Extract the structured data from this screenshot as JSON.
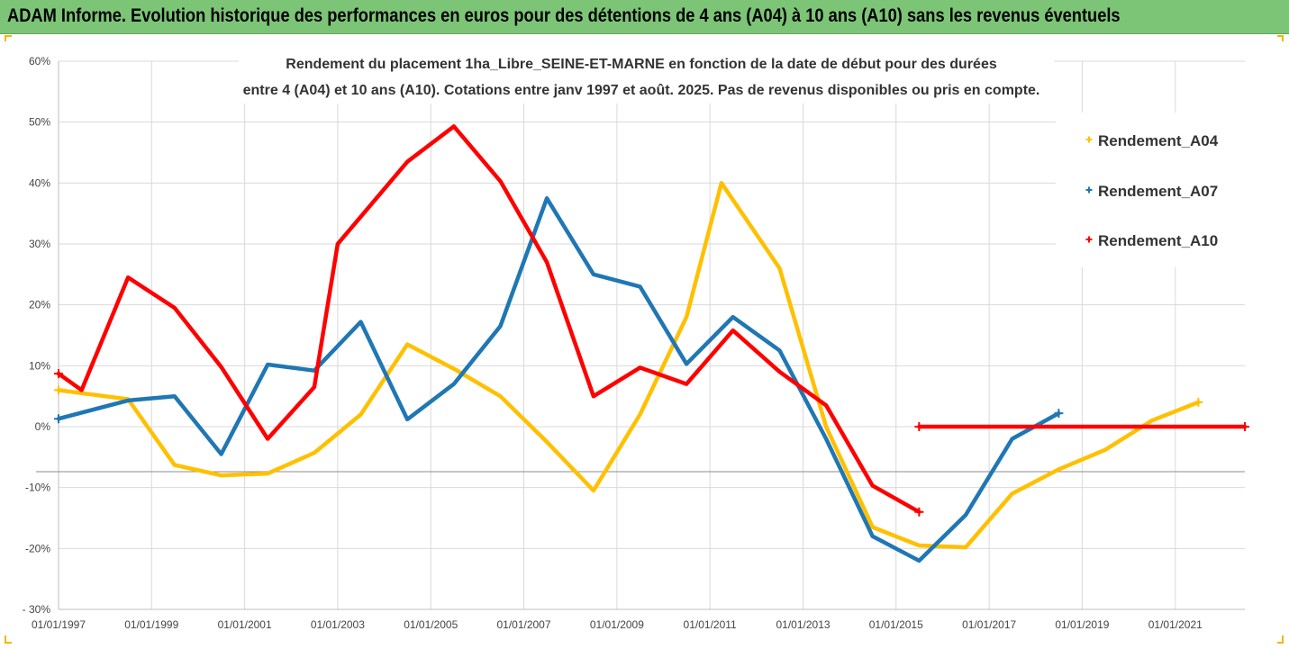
{
  "header": {
    "title": "ADAM Informe. Evolution historique des performances en euros pour des détentions de 4 ans (A04) à 10 ans (A10) sans les revenus éventuels"
  },
  "colors": {
    "banner": "#7cc576",
    "Rendement_A04": "#ffc000",
    "Rendement_A07": "#1f77b4",
    "Rendement_A10": "#ff0000"
  },
  "chart_data": {
    "type": "line",
    "title_lines": [
      "Rendement du placement 1ha_Libre_SEINE-ET-MARNE  en fonction de la date de début pour des durées",
      "entre 4 (A04) et 10 ans (A10). Cotations entre janv 1997 et août. 2025. Pas de revenus disponibles ou pris en compte."
    ],
    "xlabel": "",
    "ylabel": "",
    "x_axis_type": "date",
    "xlim": [
      "1997-01-01",
      "2022-07-01"
    ],
    "ylim": [
      -30,
      60
    ],
    "y_unit": "%",
    "y_ticks": [
      -30,
      -20,
      -10,
      0,
      10,
      20,
      30,
      40,
      50,
      60
    ],
    "y_tick_labels": [
      "- 30%",
      "-20%",
      "-10%",
      "0%",
      "10%",
      "20%",
      "30%",
      "40%",
      "50%",
      "60%"
    ],
    "x_ticks": [
      "1997-01-01",
      "1999-01-01",
      "2001-01-01",
      "2003-01-01",
      "2005-01-01",
      "2007-01-01",
      "2009-01-01",
      "2011-01-01",
      "2013-01-01",
      "2015-01-01",
      "2017-01-01",
      "2019-01-01",
      "2021-01-01"
    ],
    "x_tick_labels": [
      "01/01/1997",
      "01/01/1999",
      "01/01/2001",
      "01/01/2003",
      "01/01/2005",
      "01/01/2007",
      "01/01/2009",
      "01/01/2011",
      "01/01/2013",
      "01/01/2015",
      "01/01/2017",
      "01/01/2019",
      "01/01/2021"
    ],
    "grid": true,
    "legend_position": "right",
    "series": [
      {
        "name": "Rendement_A04",
        "points": [
          [
            "1997-01-01",
            6
          ],
          [
            "1997-07-01",
            5.5
          ],
          [
            "1998-07-01",
            4.5
          ],
          [
            "1999-07-01",
            -6.3
          ],
          [
            "2000-07-01",
            -8
          ],
          [
            "2001-07-01",
            -7.7
          ],
          [
            "2002-07-01",
            -4.3
          ],
          [
            "2003-07-01",
            2
          ],
          [
            "2004-07-01",
            13.5
          ],
          [
            "2005-07-01",
            9.5
          ],
          [
            "2006-07-01",
            5
          ],
          [
            "2007-07-01",
            -2.5
          ],
          [
            "2008-07-01",
            -10.5
          ],
          [
            "2009-07-01",
            2
          ],
          [
            "2010-07-01",
            18
          ],
          [
            "2011-04-01",
            40
          ],
          [
            "2012-07-01",
            26
          ],
          [
            "2013-07-01",
            0
          ],
          [
            "2014-07-01",
            -16.5
          ],
          [
            "2015-07-01",
            -19.5
          ],
          [
            "2016-07-01",
            -19.8
          ],
          [
            "2017-07-01",
            -11
          ],
          [
            "2018-07-01",
            -7
          ],
          [
            "2019-07-01",
            -3.8
          ],
          [
            "2020-07-01",
            1
          ],
          [
            "2021-07-01",
            4
          ]
        ]
      },
      {
        "name": "Rendement_A07",
        "points": [
          [
            "1997-01-01",
            1.3
          ],
          [
            "1998-07-01",
            4.3
          ],
          [
            "1999-07-01",
            5
          ],
          [
            "2000-07-01",
            -4.5
          ],
          [
            "2001-07-01",
            10.2
          ],
          [
            "2002-07-01",
            9.2
          ],
          [
            "2003-07-01",
            17.2
          ],
          [
            "2004-07-01",
            1.2
          ],
          [
            "2005-07-01",
            7
          ],
          [
            "2006-07-01",
            16.5
          ],
          [
            "2007-07-01",
            37.5
          ],
          [
            "2008-07-01",
            25
          ],
          [
            "2009-07-01",
            23
          ],
          [
            "2010-07-01",
            10.3
          ],
          [
            "2011-07-01",
            18
          ],
          [
            "2012-07-01",
            12.5
          ],
          [
            "2013-07-01",
            -2
          ],
          [
            "2014-07-01",
            -18
          ],
          [
            "2015-07-01",
            -22
          ],
          [
            "2016-07-01",
            -14.5
          ],
          [
            "2017-07-01",
            -2
          ],
          [
            "2018-07-01",
            2.2
          ]
        ]
      },
      {
        "name": "Rendement_A10",
        "points": [
          [
            "1997-01-01",
            8.7
          ],
          [
            "1997-07-01",
            6
          ],
          [
            "1998-07-01",
            24.5
          ],
          [
            "1999-07-01",
            19.5
          ],
          [
            "2000-07-01",
            9.8
          ],
          [
            "2001-07-01",
            -2
          ],
          [
            "2002-07-01",
            6.5
          ],
          [
            "2003-01-01",
            30
          ],
          [
            "2004-07-01",
            43.5
          ],
          [
            "2005-07-01",
            49.3
          ],
          [
            "2006-07-01",
            40.3
          ],
          [
            "2007-07-01",
            27
          ],
          [
            "2008-07-01",
            5
          ],
          [
            "2009-07-01",
            9.7
          ],
          [
            "2010-07-01",
            7
          ],
          [
            "2011-07-01",
            15.8
          ],
          [
            "2012-07-01",
            9
          ],
          [
            "2013-07-01",
            3.5
          ],
          [
            "2014-07-01",
            -9.7
          ],
          [
            "2015-07-01",
            -14
          ]
        ]
      },
      {
        "name": "Rendement_A10",
        "legend": false,
        "points": [
          [
            "2015-07-01",
            0
          ],
          [
            "2022-07-01",
            0
          ]
        ]
      }
    ]
  }
}
